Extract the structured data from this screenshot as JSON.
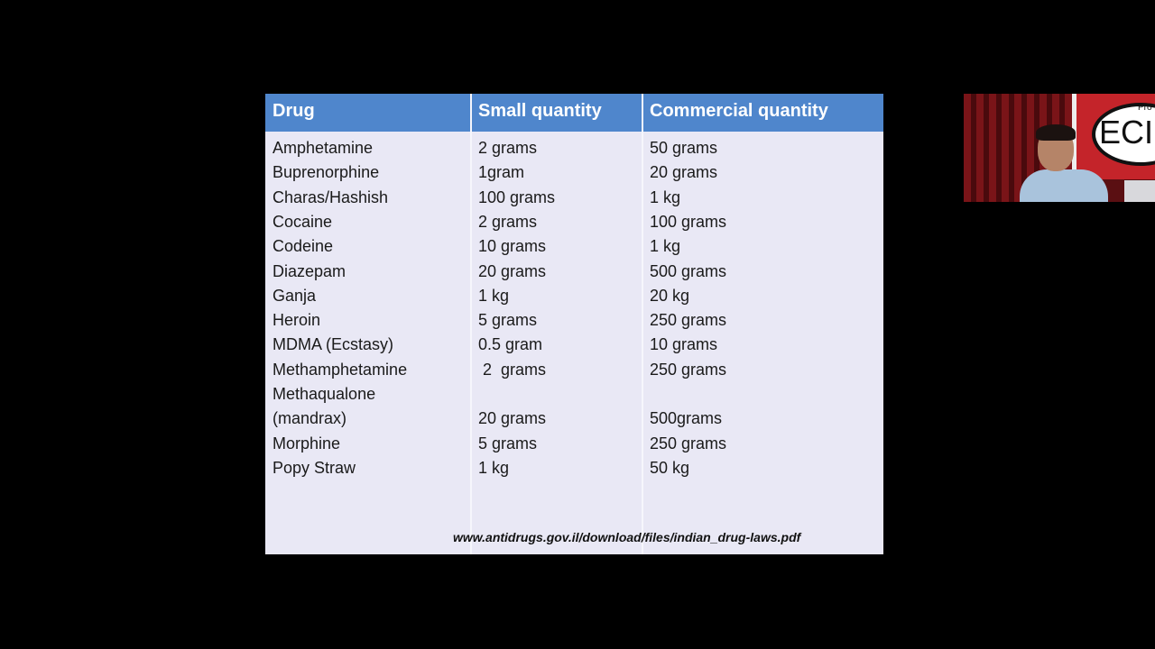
{
  "table": {
    "headers": [
      "Drug",
      "Small quantity",
      "Commercial quantity"
    ],
    "rows": [
      [
        "Amphetamine",
        "2 grams",
        "50 grams"
      ],
      [
        "Buprenorphine",
        "1gram",
        "20 grams"
      ],
      [
        "Charas/Hashish",
        "100 grams",
        "1 kg"
      ],
      [
        "Cocaine",
        "2 grams",
        "100 grams"
      ],
      [
        "Codeine",
        "10 grams",
        "1 kg"
      ],
      [
        "Diazepam",
        "20 grams",
        "500 grams"
      ],
      [
        "Ganja",
        "1 kg",
        "20 kg"
      ],
      [
        "Heroin",
        "5 grams",
        "250 grams"
      ],
      [
        "MDMA (Ecstasy)",
        "0.5 gram",
        "10 grams"
      ],
      [
        "Methamphetamine",
        " 2  grams",
        "250 grams"
      ],
      [
        "Methaqualone",
        "",
        ""
      ],
      [
        "(mandrax)",
        "20 grams",
        "500grams"
      ],
      [
        "Morphine",
        "5 grams",
        "250 grams"
      ],
      [
        "Popy Straw",
        "1 kg",
        "50 kg"
      ]
    ]
  },
  "source": "www.antidrugs.gov.il/download/files/indian_drug-laws.pdf",
  "webcam": {
    "logo_text": "ECI",
    "logo_small": "Pro"
  },
  "colors": {
    "header": "#4f86cc",
    "body": "#e9e8f5",
    "background": "#000000"
  }
}
